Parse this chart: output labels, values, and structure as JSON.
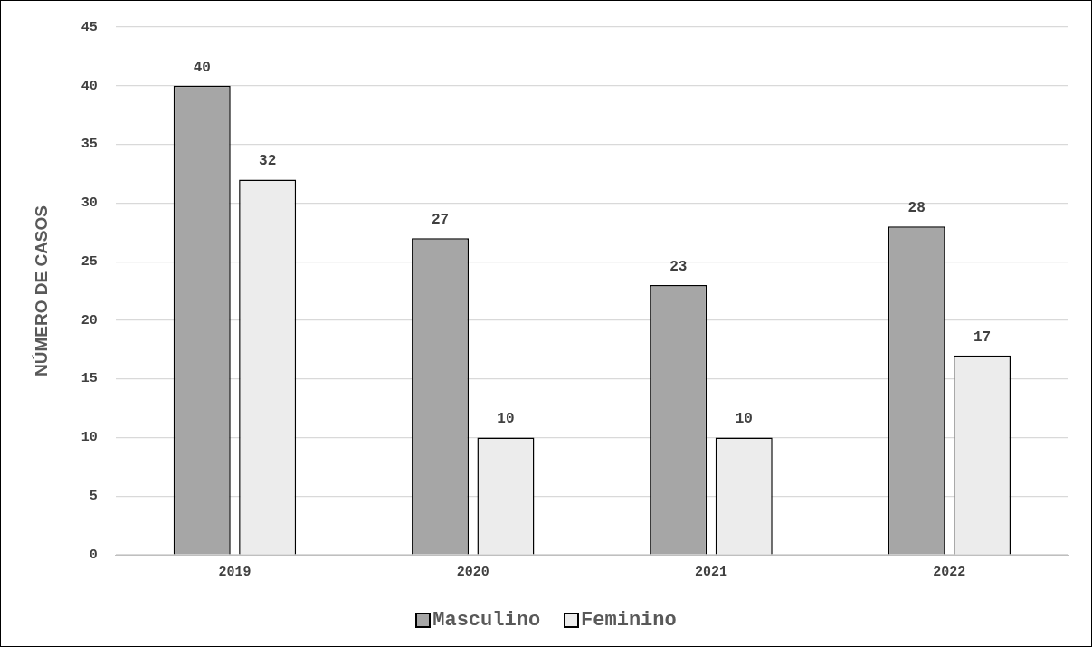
{
  "chart_data": {
    "type": "bar",
    "ylabel": "NÚMERO DE CASOS",
    "categories": [
      "2019",
      "2020",
      "2021",
      "2022"
    ],
    "series": [
      {
        "name": "Masculino",
        "color": "#a6a6a6",
        "values": [
          40,
          27,
          23,
          28
        ]
      },
      {
        "name": "Feminino",
        "color": "#ececec",
        "values": [
          32,
          10,
          10,
          17
        ]
      }
    ],
    "ylim": [
      0,
      45
    ],
    "yticks": [
      0,
      5,
      10,
      15,
      20,
      25,
      30,
      35,
      40,
      45
    ],
    "grid": "y",
    "legend": "bottom",
    "data_labels": true
  }
}
